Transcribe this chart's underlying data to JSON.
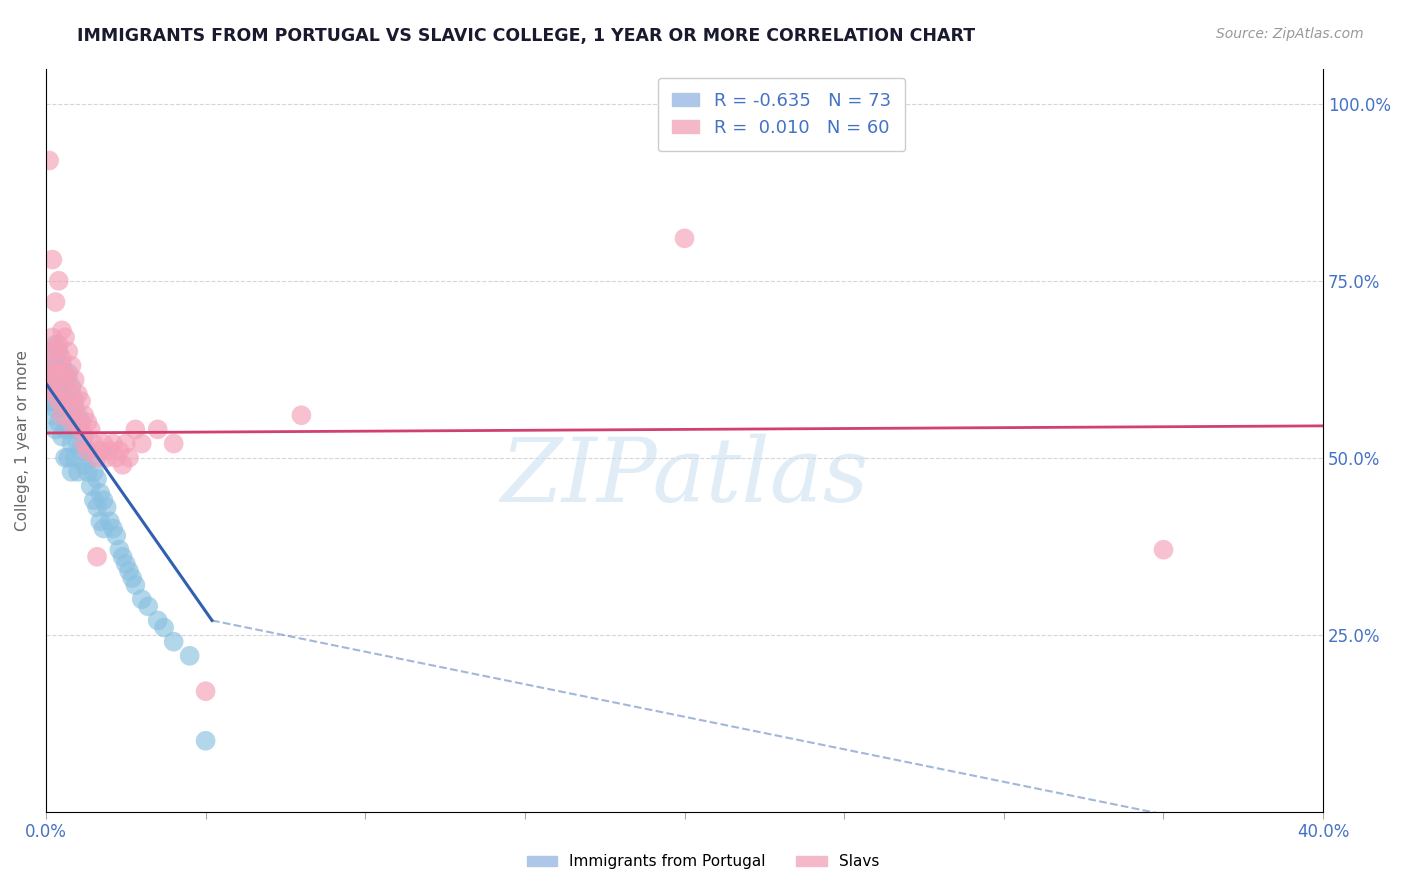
{
  "title": "IMMIGRANTS FROM PORTUGAL VS SLAVIC COLLEGE, 1 YEAR OR MORE CORRELATION CHART",
  "source": "Source: ZipAtlas.com",
  "ylabel": "College, 1 year or more",
  "yaxis_tick_vals": [
    0.0,
    0.25,
    0.5,
    0.75,
    1.0
  ],
  "yaxis_tick_labels": [
    "",
    "25.0%",
    "50.0%",
    "75.0%",
    "100.0%"
  ],
  "xlim": [
    0.0,
    0.4
  ],
  "ylim": [
    0.0,
    1.05
  ],
  "xtick_count": 9,
  "blue_scatter": [
    [
      0.001,
      0.62
    ],
    [
      0.001,
      0.6
    ],
    [
      0.001,
      0.58
    ],
    [
      0.002,
      0.64
    ],
    [
      0.002,
      0.61
    ],
    [
      0.002,
      0.58
    ],
    [
      0.002,
      0.56
    ],
    [
      0.003,
      0.66
    ],
    [
      0.003,
      0.63
    ],
    [
      0.003,
      0.6
    ],
    [
      0.003,
      0.57
    ],
    [
      0.003,
      0.54
    ],
    [
      0.004,
      0.65
    ],
    [
      0.004,
      0.62
    ],
    [
      0.004,
      0.59
    ],
    [
      0.004,
      0.55
    ],
    [
      0.005,
      0.63
    ],
    [
      0.005,
      0.6
    ],
    [
      0.005,
      0.57
    ],
    [
      0.005,
      0.53
    ],
    [
      0.006,
      0.61
    ],
    [
      0.006,
      0.58
    ],
    [
      0.006,
      0.54
    ],
    [
      0.006,
      0.5
    ],
    [
      0.007,
      0.62
    ],
    [
      0.007,
      0.58
    ],
    [
      0.007,
      0.54
    ],
    [
      0.007,
      0.5
    ],
    [
      0.008,
      0.6
    ],
    [
      0.008,
      0.56
    ],
    [
      0.008,
      0.52
    ],
    [
      0.008,
      0.48
    ],
    [
      0.009,
      0.58
    ],
    [
      0.009,
      0.54
    ],
    [
      0.009,
      0.5
    ],
    [
      0.01,
      0.56
    ],
    [
      0.01,
      0.52
    ],
    [
      0.01,
      0.48
    ],
    [
      0.011,
      0.55
    ],
    [
      0.011,
      0.51
    ],
    [
      0.012,
      0.53
    ],
    [
      0.012,
      0.49
    ],
    [
      0.013,
      0.51
    ],
    [
      0.013,
      0.48
    ],
    [
      0.014,
      0.5
    ],
    [
      0.014,
      0.46
    ],
    [
      0.015,
      0.48
    ],
    [
      0.015,
      0.44
    ],
    [
      0.016,
      0.47
    ],
    [
      0.016,
      0.43
    ],
    [
      0.017,
      0.45
    ],
    [
      0.017,
      0.41
    ],
    [
      0.018,
      0.44
    ],
    [
      0.018,
      0.4
    ],
    [
      0.019,
      0.43
    ],
    [
      0.02,
      0.41
    ],
    [
      0.021,
      0.4
    ],
    [
      0.022,
      0.39
    ],
    [
      0.023,
      0.37
    ],
    [
      0.024,
      0.36
    ],
    [
      0.025,
      0.35
    ],
    [
      0.026,
      0.34
    ],
    [
      0.027,
      0.33
    ],
    [
      0.028,
      0.32
    ],
    [
      0.03,
      0.3
    ],
    [
      0.032,
      0.29
    ],
    [
      0.035,
      0.27
    ],
    [
      0.037,
      0.26
    ],
    [
      0.04,
      0.24
    ],
    [
      0.045,
      0.22
    ],
    [
      0.05,
      0.1
    ]
  ],
  "pink_scatter": [
    [
      0.001,
      0.92
    ],
    [
      0.001,
      0.65
    ],
    [
      0.001,
      0.62
    ],
    [
      0.001,
      0.6
    ],
    [
      0.002,
      0.78
    ],
    [
      0.002,
      0.67
    ],
    [
      0.002,
      0.63
    ],
    [
      0.002,
      0.6
    ],
    [
      0.003,
      0.72
    ],
    [
      0.003,
      0.65
    ],
    [
      0.003,
      0.62
    ],
    [
      0.003,
      0.59
    ],
    [
      0.004,
      0.75
    ],
    [
      0.004,
      0.66
    ],
    [
      0.004,
      0.62
    ],
    [
      0.004,
      0.58
    ],
    [
      0.005,
      0.68
    ],
    [
      0.005,
      0.64
    ],
    [
      0.005,
      0.6
    ],
    [
      0.005,
      0.56
    ],
    [
      0.006,
      0.67
    ],
    [
      0.006,
      0.62
    ],
    [
      0.006,
      0.58
    ],
    [
      0.007,
      0.65
    ],
    [
      0.007,
      0.61
    ],
    [
      0.007,
      0.57
    ],
    [
      0.008,
      0.63
    ],
    [
      0.008,
      0.59
    ],
    [
      0.008,
      0.55
    ],
    [
      0.009,
      0.61
    ],
    [
      0.009,
      0.57
    ],
    [
      0.01,
      0.59
    ],
    [
      0.01,
      0.55
    ],
    [
      0.011,
      0.58
    ],
    [
      0.011,
      0.54
    ],
    [
      0.012,
      0.56
    ],
    [
      0.012,
      0.52
    ],
    [
      0.013,
      0.55
    ],
    [
      0.013,
      0.51
    ],
    [
      0.014,
      0.54
    ],
    [
      0.015,
      0.52
    ],
    [
      0.016,
      0.5
    ],
    [
      0.016,
      0.36
    ],
    [
      0.017,
      0.51
    ],
    [
      0.018,
      0.52
    ],
    [
      0.019,
      0.5
    ],
    [
      0.02,
      0.51
    ],
    [
      0.021,
      0.52
    ],
    [
      0.022,
      0.5
    ],
    [
      0.023,
      0.51
    ],
    [
      0.024,
      0.49
    ],
    [
      0.025,
      0.52
    ],
    [
      0.026,
      0.5
    ],
    [
      0.028,
      0.54
    ],
    [
      0.03,
      0.52
    ],
    [
      0.035,
      0.54
    ],
    [
      0.04,
      0.52
    ],
    [
      0.05,
      0.17
    ],
    [
      0.08,
      0.56
    ],
    [
      0.2,
      0.81
    ],
    [
      0.35,
      0.37
    ]
  ],
  "blue_line_x": [
    0.0,
    0.052
  ],
  "blue_line_y": [
    0.605,
    0.27
  ],
  "dashed_line_x": [
    0.052,
    0.4
  ],
  "dashed_line_y": [
    0.27,
    -0.05
  ],
  "pink_line_x": [
    0.0,
    0.4
  ],
  "pink_line_y": [
    0.535,
    0.545
  ],
  "blue_color": "#89c0e0",
  "pink_color": "#f4a0b8",
  "blue_line_color": "#3060b0",
  "pink_line_color": "#d04070",
  "legend_blue_color": "#aec6e8",
  "legend_pink_color": "#f4b8c8",
  "background_color": "#ffffff",
  "grid_color": "#cccccc",
  "title_color": "#1a1a2e",
  "axis_label_color": "#4472c4",
  "watermark": "ZIPatlas"
}
